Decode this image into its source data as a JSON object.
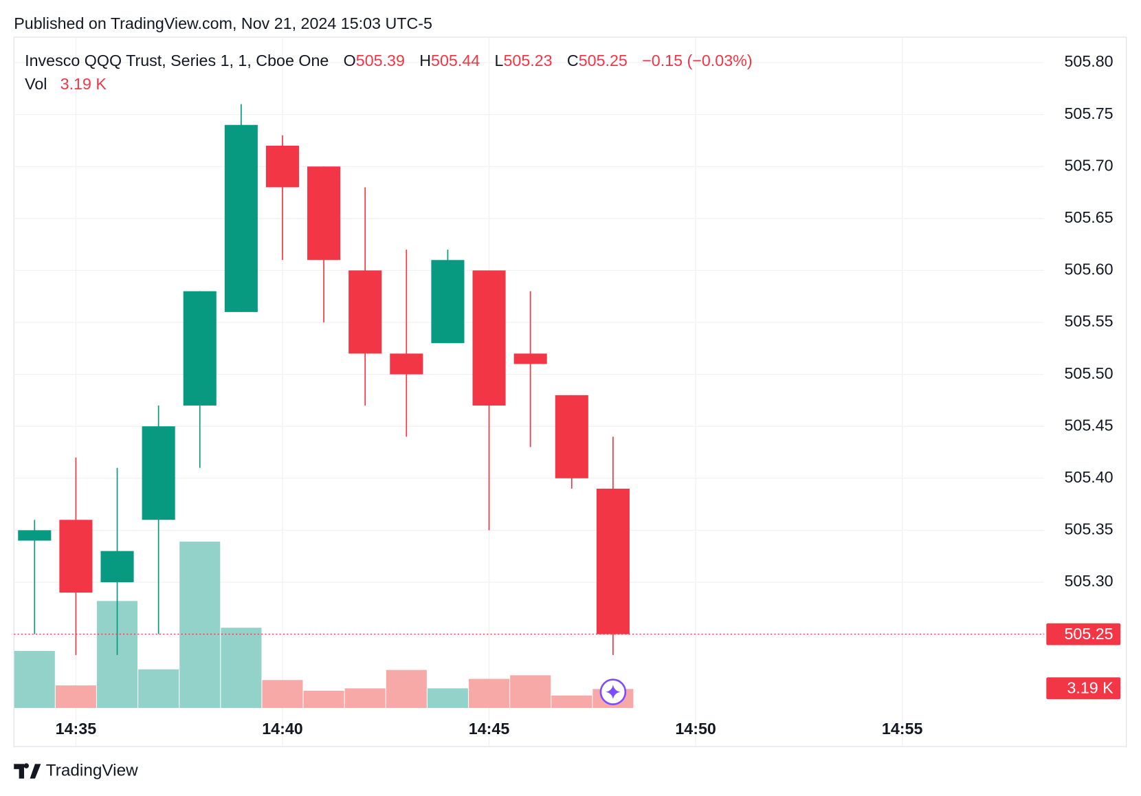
{
  "header": "Published on TradingView.com, Nov 21, 2024 15:03 UTC-5",
  "footer": "TradingView",
  "chart_data": {
    "type": "candlestick",
    "title": "Invesco QQQ Trust, Series 1, 1, Cboe One",
    "legend_keys": [
      "O",
      "H",
      "L",
      "C"
    ],
    "change": "−0.15 (−0.03%)",
    "volume_title": "Vol",
    "x": [
      "14:34",
      "14:35",
      "14:36",
      "14:37",
      "14:38",
      "14:39",
      "14:40",
      "14:41",
      "14:42",
      "14:43",
      "14:44",
      "14:45",
      "14:46",
      "14:47",
      "14:48"
    ],
    "open": [
      505.34,
      505.36,
      505.3,
      505.36,
      505.47,
      505.56,
      505.72,
      505.7,
      505.6,
      505.52,
      505.53,
      505.6,
      505.52,
      505.48,
      505.39
    ],
    "high": [
      505.36,
      505.42,
      505.41,
      505.47,
      505.58,
      505.76,
      505.73,
      505.7,
      505.68,
      505.62,
      505.62,
      505.6,
      505.58,
      505.48,
      505.44
    ],
    "low": [
      505.25,
      505.23,
      505.23,
      505.25,
      505.41,
      505.56,
      505.61,
      505.55,
      505.47,
      505.44,
      505.53,
      505.35,
      505.43,
      505.39,
      505.23
    ],
    "close": [
      505.35,
      505.29,
      505.33,
      505.45,
      505.58,
      505.74,
      505.68,
      505.61,
      505.52,
      505.5,
      505.61,
      505.47,
      505.51,
      505.4,
      505.25
    ],
    "volume": {
      "values": [
        9600,
        3800,
        18000,
        6500,
        28000,
        13500,
        4700,
        2900,
        3300,
        6400,
        3300,
        4900,
        5500,
        2100,
        3190
      ],
      "value_labels": [
        null,
        null,
        null,
        null,
        null,
        null,
        null,
        null,
        null,
        null,
        null,
        null,
        null,
        null,
        "3.19 K"
      ],
      "ylim": [
        0,
        30000
      ]
    },
    "up_color": "#089981",
    "down_color": "#f23645",
    "volume_up_color": "#92d2c9",
    "volume_down_color": "#f7a9a8",
    "ylim": [
      505.179,
      505.8245
    ],
    "yticks": [
      {
        "value": 505.3,
        "label": "505.30"
      },
      505.35,
      {
        "value": 505.4,
        "label": "505.40"
      },
      505.45,
      {
        "value": 505.5,
        "label": "505.50"
      },
      505.55,
      {
        "value": 505.6,
        "label": "505.60"
      },
      505.65,
      {
        "value": 505.7,
        "label": "505.70"
      },
      505.75,
      {
        "value": 505.8,
        "label": "505.80"
      }
    ],
    "xlim": [
      "14:33:30",
      "14:58:26"
    ],
    "xticks": [
      "14:35",
      "14:40",
      "14:45",
      "14:50",
      "14:55"
    ],
    "grid": true
  }
}
